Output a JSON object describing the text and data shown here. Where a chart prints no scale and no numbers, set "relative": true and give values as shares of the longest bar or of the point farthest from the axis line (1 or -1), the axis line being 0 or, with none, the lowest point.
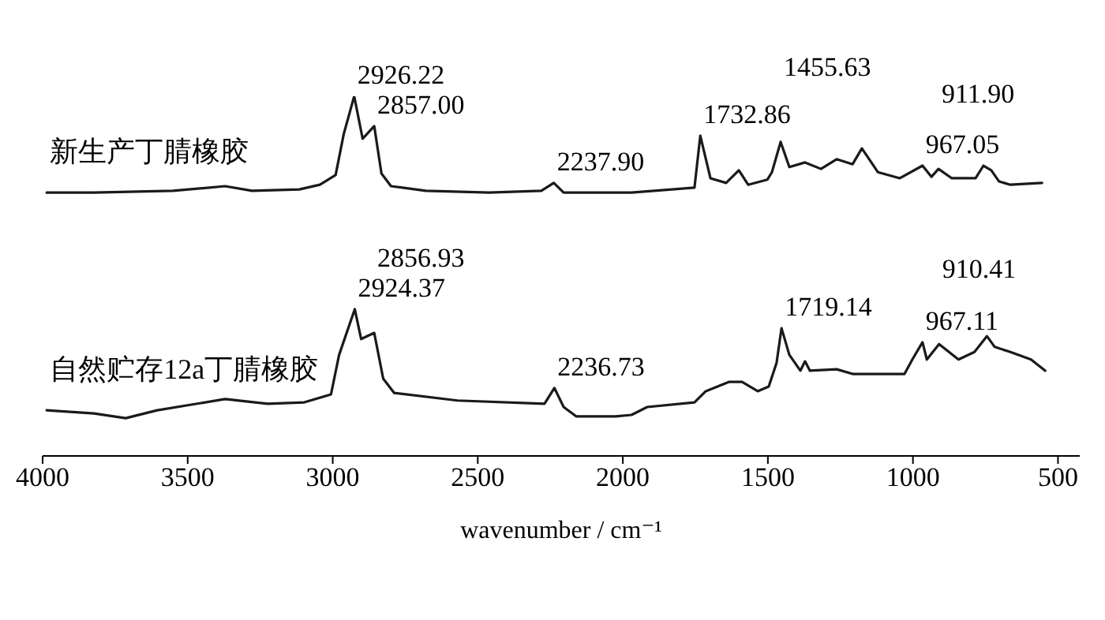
{
  "chart_data": {
    "type": "line",
    "relative": true,
    "xlabel": "wavenumber / cm⁻¹",
    "xlim": [
      4000,
      425
    ],
    "xticks": [
      4000,
      3500,
      3000,
      2500,
      2000,
      1500,
      1000,
      500
    ],
    "grid": false,
    "legend": false,
    "marker": "none",
    "line_style": "solid",
    "series": [
      {
        "name": "新生产丁腈橡胶",
        "color": "#1a1a1a",
        "x": [
          3986,
          3823,
          3551,
          3371,
          3278,
          3115,
          3044,
          2990,
          2962,
          2926,
          2897,
          2857,
          2832,
          2799,
          2679,
          2461,
          2281,
          2238,
          2204,
          1970,
          1753,
          1733,
          1698,
          1644,
          1600,
          1568,
          1502,
          1486,
          1456,
          1426,
          1372,
          1317,
          1263,
          1208,
          1176,
          1121,
          1045,
          967,
          936,
          912,
          866,
          784,
          757,
          730,
          703,
          664,
          555
        ],
        "values": [
          0.732,
          0.732,
          0.737,
          0.75,
          0.737,
          0.741,
          0.754,
          0.781,
          0.895,
          1.0,
          0.882,
          0.917,
          0.785,
          0.75,
          0.737,
          0.732,
          0.737,
          0.759,
          0.732,
          0.732,
          0.746,
          0.89,
          0.772,
          0.759,
          0.794,
          0.754,
          0.768,
          0.789,
          0.873,
          0.803,
          0.816,
          0.798,
          0.825,
          0.811,
          0.855,
          0.789,
          0.772,
          0.807,
          0.776,
          0.798,
          0.772,
          0.772,
          0.807,
          0.794,
          0.763,
          0.754,
          0.759
        ]
      },
      {
        "name": "自然贮存12a丁腈橡胶",
        "color": "#1a1a1a",
        "x": [
          3986,
          3823,
          3714,
          3605,
          3371,
          3224,
          3098,
          3006,
          2978,
          2924,
          2902,
          2857,
          2826,
          2788,
          2570,
          2270,
          2236,
          2204,
          2161,
          2025,
          1970,
          1916,
          1753,
          1714,
          1633,
          1589,
          1535,
          1497,
          1470,
          1453,
          1426,
          1388,
          1372,
          1355,
          1263,
          1208,
          1029,
          1002,
          967,
          952,
          910,
          843,
          788,
          745,
          718,
          664,
          593,
          544
        ],
        "values": [
          0.127,
          0.118,
          0.105,
          0.127,
          0.158,
          0.145,
          0.149,
          0.171,
          0.281,
          0.408,
          0.325,
          0.342,
          0.215,
          0.175,
          0.154,
          0.145,
          0.189,
          0.136,
          0.11,
          0.11,
          0.114,
          0.136,
          0.149,
          0.18,
          0.206,
          0.206,
          0.18,
          0.193,
          0.259,
          0.355,
          0.281,
          0.237,
          0.263,
          0.237,
          0.241,
          0.228,
          0.228,
          0.268,
          0.316,
          0.268,
          0.311,
          0.268,
          0.289,
          0.333,
          0.303,
          0.289,
          0.268,
          0.237
        ]
      }
    ],
    "annotations": [
      {
        "text": "2926.22",
        "x": 2926,
        "y": 1.0
      },
      {
        "text": "2857.00",
        "x": 2857,
        "y": 0.917
      },
      {
        "text": "2237.90",
        "x": 2238,
        "y": 0.759
      },
      {
        "text": "1732.86",
        "x": 1733,
        "y": 0.89
      },
      {
        "text": "1455.63",
        "x": 1456,
        "y": 0.873
      },
      {
        "text": "967.05",
        "x": 967,
        "y": 0.807
      },
      {
        "text": "911.90",
        "x": 912,
        "y": 0.798
      },
      {
        "text": "2924.37",
        "x": 2924,
        "y": 0.408
      },
      {
        "text": "2856.93",
        "x": 2857,
        "y": 0.342
      },
      {
        "text": "2236.73",
        "x": 2236,
        "y": 0.189
      },
      {
        "text": "1719.14",
        "x": 1453,
        "y": 0.355
      },
      {
        "text": "967.11",
        "x": 967,
        "y": 0.316
      },
      {
        "text": "910.41",
        "x": 910,
        "y": 0.311
      }
    ]
  }
}
